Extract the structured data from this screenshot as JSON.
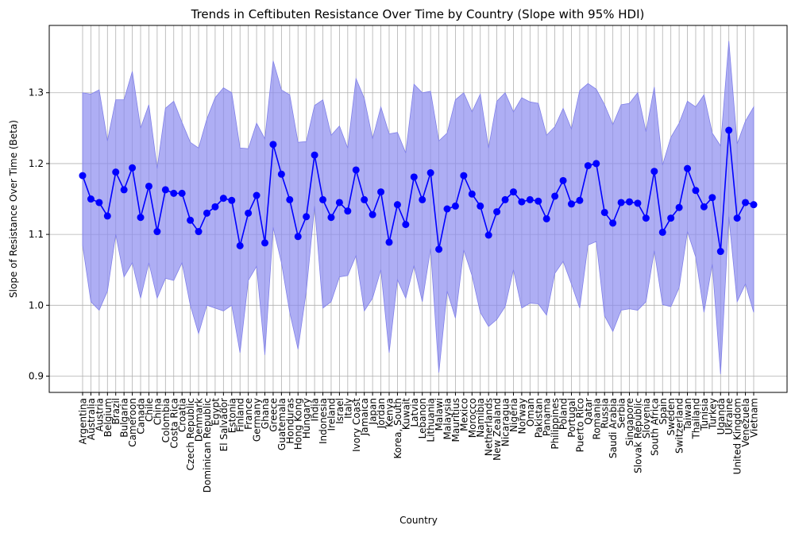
{
  "colors": {
    "line": "#0000ff",
    "band": "#8c8cf0",
    "band_edge": "#8080e8",
    "grid": "#b0b0b0",
    "axes": "#000000"
  },
  "chart_data": {
    "type": "line",
    "title": "Trends in Ceftibuten Resistance Over Time by Country (Slope with 95% HDI)",
    "xlabel": "Country",
    "ylabel": "Slope of Resistance Over Time (Beta)",
    "ylim": [
      0.877,
      1.395
    ],
    "yticks": [
      "0.9",
      "1.0",
      "1.1",
      "1.2",
      "1.3"
    ],
    "grid": true,
    "legend": "none",
    "categories": [
      "Argentina",
      "Australia",
      "Austria",
      "Belgium",
      "Brazil",
      "Bulgaria",
      "Cameroon",
      "Canada",
      "Chile",
      "China",
      "Colombia",
      "Costa Rica",
      "Croatia",
      "Czech Republic",
      "Denmark",
      "Dominican Republic",
      "Egypt",
      "El Salvador",
      "Estonia",
      "Finland",
      "France",
      "Germany",
      "Ghana",
      "Greece",
      "Guatemala",
      "Honduras",
      "Hong Kong",
      "Hungary",
      "India",
      "Indonesia",
      "Ireland",
      "Israel",
      "Italy",
      "Ivory Coast",
      "Jamaica",
      "Japan",
      "Jordan",
      "Kenya",
      "Korea, South",
      "Kuwait",
      "Latvia",
      "Lebanon",
      "Lithuania",
      "Malawi",
      "Malaysia",
      "Mauritius",
      "Mexico",
      "Morocco",
      "Namibia",
      "Netherlands",
      "New Zealand",
      "Nicaragua",
      "Nigeria",
      "Norway",
      "Oman",
      "Pakistan",
      "Panama",
      "Philippines",
      "Poland",
      "Portugal",
      "Puerto Rico",
      "Qatar",
      "Romania",
      "Russia",
      "Saudi Arabia",
      "Serbia",
      "Singapore",
      "Slovak Republic",
      "Slovenia",
      "South Africa",
      "Spain",
      "Sweden",
      "Switzerland",
      "Taiwan",
      "Thailand",
      "Tunisia",
      "Turkey",
      "Uganda",
      "Ukraine",
      "United Kingdom",
      "Venezuela",
      "Vietnam"
    ],
    "series": [
      {
        "values": [
          1.183,
          1.15,
          1.145,
          1.126,
          1.188,
          1.163,
          1.194,
          1.124,
          1.168,
          1.104,
          1.163,
          1.158,
          1.158,
          1.12,
          1.104,
          1.13,
          1.139,
          1.151,
          1.148,
          1.084,
          1.13,
          1.155,
          1.088,
          1.227,
          1.185,
          1.149,
          1.097,
          1.125,
          1.212,
          1.149,
          1.124,
          1.145,
          1.133,
          1.191,
          1.149,
          1.128,
          1.16,
          1.089,
          1.142,
          1.114,
          1.181,
          1.149,
          1.187,
          1.079,
          1.136,
          1.14,
          1.183,
          1.157,
          1.14,
          1.099,
          1.132,
          1.149,
          1.16,
          1.146,
          1.149,
          1.147,
          1.122,
          1.154,
          1.176,
          1.143,
          1.148,
          1.197,
          1.2,
          1.131,
          1.116,
          1.145,
          1.146,
          1.144,
          1.123,
          1.189,
          1.103,
          1.123,
          1.138,
          1.193,
          1.162,
          1.139,
          1.152,
          1.076,
          1.247,
          1.123,
          1.145,
          1.142
        ],
        "hdi_lower": [
          1.085,
          1.005,
          0.993,
          1.02,
          1.1,
          1.04,
          1.06,
          1.01,
          1.06,
          1.01,
          1.038,
          1.035,
          1.06,
          1.0,
          0.96,
          1.0,
          0.996,
          0.992,
          1.0,
          0.933,
          1.035,
          1.055,
          0.93,
          1.11,
          1.06,
          0.99,
          0.938,
          1.02,
          1.14,
          0.996,
          1.005,
          1.04,
          1.042,
          1.07,
          0.992,
          1.01,
          1.05,
          0.933,
          1.036,
          1.01,
          1.056,
          1.005,
          1.08,
          0.905,
          1.02,
          0.982,
          1.078,
          1.042,
          0.99,
          0.97,
          0.98,
          0.998,
          1.05,
          0.996,
          1.003,
          1.002,
          0.986,
          1.045,
          1.062,
          1.03,
          0.996,
          1.085,
          1.09,
          0.985,
          0.963,
          0.993,
          0.995,
          0.993,
          1.005,
          1.077,
          1.001,
          0.998,
          1.025,
          1.104,
          1.068,
          0.99,
          1.058,
          0.903,
          1.125,
          1.005,
          1.03,
          0.99
        ],
        "hdi_upper": [
          1.3,
          1.298,
          1.304,
          1.232,
          1.29,
          1.29,
          1.33,
          1.25,
          1.283,
          1.193,
          1.278,
          1.288,
          1.258,
          1.23,
          1.222,
          1.263,
          1.293,
          1.307,
          1.3,
          1.222,
          1.221,
          1.257,
          1.235,
          1.345,
          1.304,
          1.297,
          1.23,
          1.231,
          1.282,
          1.29,
          1.24,
          1.253,
          1.222,
          1.32,
          1.292,
          1.235,
          1.28,
          1.242,
          1.244,
          1.215,
          1.312,
          1.3,
          1.302,
          1.232,
          1.243,
          1.29,
          1.3,
          1.273,
          1.298,
          1.222,
          1.288,
          1.3,
          1.273,
          1.293,
          1.287,
          1.285,
          1.24,
          1.252,
          1.278,
          1.249,
          1.303,
          1.313,
          1.305,
          1.283,
          1.255,
          1.283,
          1.285,
          1.3,
          1.245,
          1.308,
          1.198,
          1.237,
          1.257,
          1.288,
          1.28,
          1.297,
          1.243,
          1.225,
          1.373,
          1.228,
          1.26,
          1.28
        ]
      }
    ]
  }
}
